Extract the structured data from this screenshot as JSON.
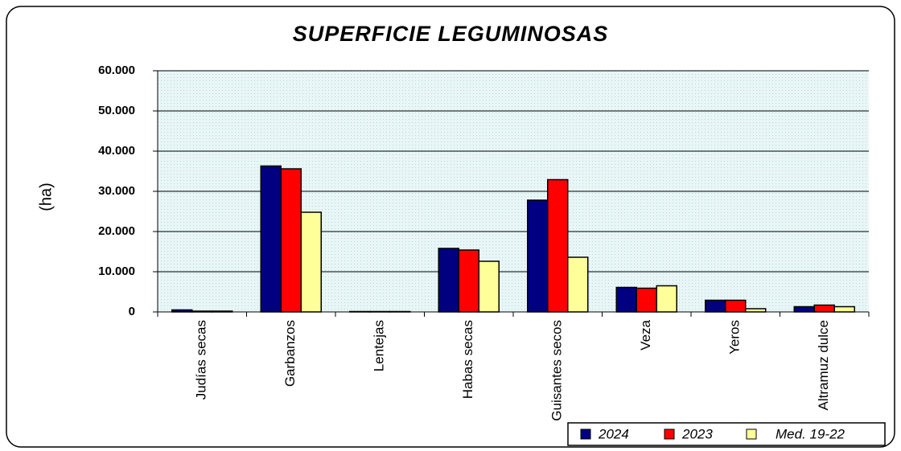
{
  "chart_data": {
    "type": "bar",
    "title": "SUPERFICIE LEGUMINOSAS",
    "y_label": "(ha)",
    "categories": [
      "Judías secas",
      "Garbanzos",
      "Lentejas",
      "Habas secas",
      "Guisantes secos",
      "Veza",
      "Yeros",
      "Altramuz dulce"
    ],
    "series": [
      {
        "name": "2024",
        "color": "#000080",
        "values": [
          500,
          36300,
          100,
          15800,
          27800,
          6100,
          2900,
          1300
        ]
      },
      {
        "name": "2023",
        "color": "#ff0000",
        "values": [
          200,
          35600,
          100,
          15400,
          32900,
          5900,
          2900,
          1700
        ]
      },
      {
        "name": "Med. 19-22",
        "color": "#ffff99",
        "values": [
          200,
          24800,
          100,
          12600,
          13600,
          6500,
          800,
          1300
        ]
      }
    ],
    "ylim": [
      0,
      60000
    ],
    "yticks": [
      0,
      {
        "value": 10000,
        "label": "10.000"
      },
      {
        "value": 20000,
        "label": "20.000"
      },
      {
        "value": 30000,
        "label": "30.000"
      },
      {
        "value": 40000,
        "label": "40.000"
      },
      {
        "value": 50000,
        "label": "50.000"
      },
      {
        "value": 60000,
        "label": "60.000"
      }
    ],
    "grid": true,
    "legend": "bottom-right"
  }
}
